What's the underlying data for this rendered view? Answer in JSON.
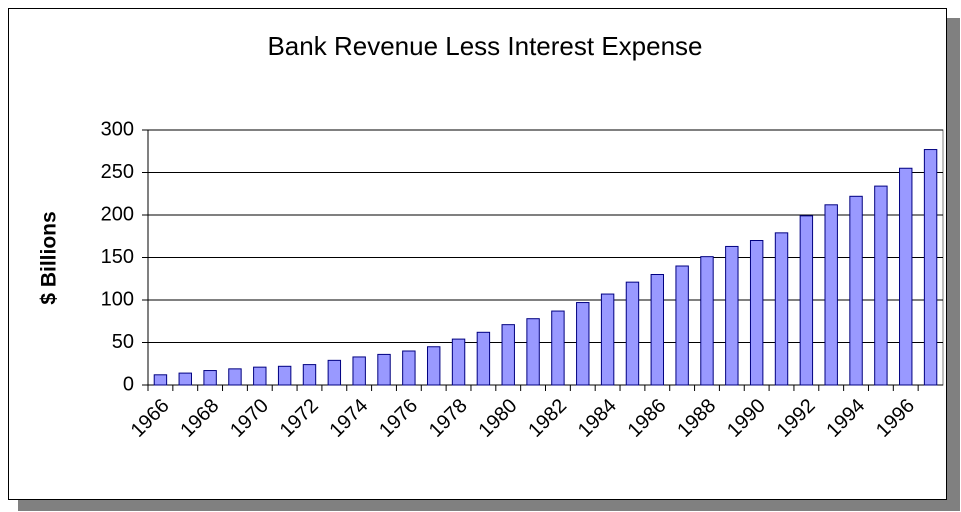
{
  "chart_data": {
    "type": "bar",
    "title": "Bank Revenue Less Interest Expense",
    "y_label": "$ Billions",
    "categories": [
      "1966",
      null,
      "1968",
      null,
      "1970",
      null,
      "1972",
      null,
      "1974",
      null,
      "1976",
      null,
      "1978",
      null,
      "1980",
      null,
      "1982",
      null,
      "1984",
      null,
      "1986",
      null,
      "1988",
      null,
      "1990",
      null,
      "1992",
      null,
      "1994",
      null,
      "1996",
      null
    ],
    "values": [
      12,
      14,
      17,
      19,
      21,
      22,
      24,
      29,
      33,
      36,
      40,
      45,
      54,
      62,
      71,
      78,
      87,
      97,
      107,
      121,
      130,
      140,
      151,
      163,
      170,
      179,
      199,
      212,
      222,
      234,
      255,
      277
    ],
    "color": "#9999ff",
    "ylim": [
      0,
      300
    ],
    "yticks": [
      0,
      50,
      100,
      150,
      200,
      250,
      300
    ],
    "grid": true
  }
}
